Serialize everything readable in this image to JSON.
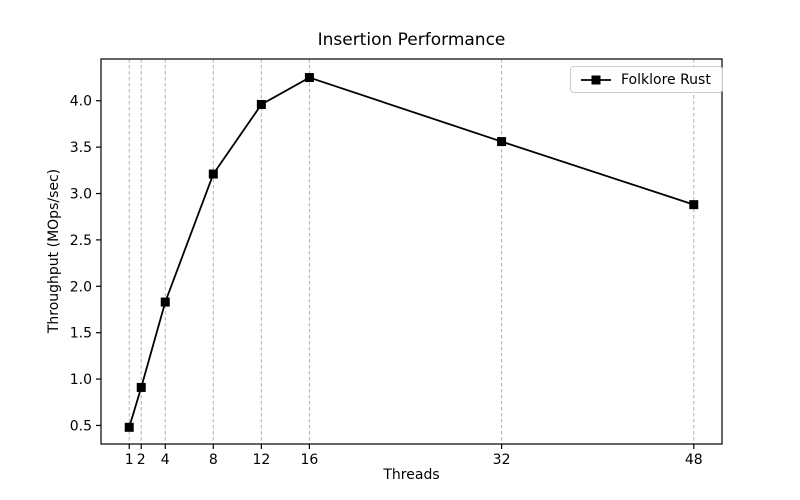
{
  "chart_data": {
    "type": "line",
    "title": "Insertion Performance",
    "xlabel": "Threads",
    "ylabel": "Throughput (MOps/sec)",
    "series": [
      {
        "name": "Folklore Rust",
        "x": [
          1,
          2,
          4,
          8,
          12,
          16,
          32,
          48
        ],
        "y": [
          0.48,
          0.91,
          1.83,
          3.21,
          3.96,
          4.25,
          3.56,
          2.88
        ],
        "color": "#000000",
        "marker": "square",
        "line_width": 1.8,
        "marker_size": 9
      }
    ],
    "xlim": [
      -1.35,
      50.35
    ],
    "ylim": [
      0.3,
      4.45
    ],
    "xticks": {
      "values": [
        1,
        2,
        4,
        8,
        12,
        16,
        32,
        48
      ],
      "labels": [
        "1",
        "2",
        "4",
        "8",
        "12",
        "16",
        "32",
        "48"
      ]
    },
    "yticks": {
      "values": [
        0.5,
        1.0,
        1.5,
        2.0,
        2.5,
        3.0,
        3.5,
        4.0
      ],
      "labels": [
        "0.5",
        "1.0",
        "1.5",
        "2.0",
        "2.5",
        "3.0",
        "3.5",
        "4.0"
      ]
    },
    "grid": {
      "axis": "x",
      "style": "dashed",
      "color": "#b0b0b0"
    },
    "legend": {
      "position": "upper right",
      "entries": [
        "Folklore Rust"
      ]
    },
    "axis_color": "#000000",
    "text_color": "#000000",
    "background": "#ffffff"
  }
}
